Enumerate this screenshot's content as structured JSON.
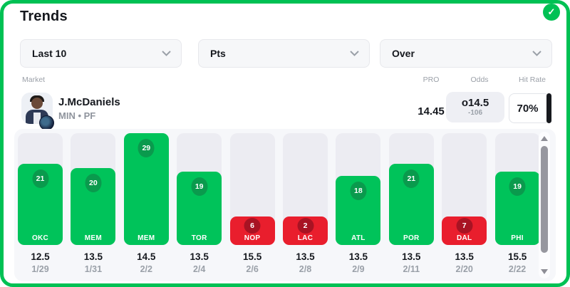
{
  "header": {
    "title": "Trends",
    "check_glyph": "✓"
  },
  "filters": [
    {
      "label": "Last 10"
    },
    {
      "label": "Pts"
    },
    {
      "label": "Over"
    }
  ],
  "columns_header": {
    "market": "Market",
    "pro": "PRO",
    "odds": "Odds",
    "hit_rate": "Hit Rate"
  },
  "player": {
    "name": "J.McDaniels",
    "team_position": "MIN • PF",
    "pro_value": "14.45",
    "odds_line": "o14.5",
    "odds_price": "-106",
    "hit_rate": "70%"
  },
  "chart_data": {
    "type": "bar",
    "teams": [
      "OKC",
      "MEM",
      "MEM",
      "TOR",
      "NOP",
      "LAC",
      "ATL",
      "POR",
      "DAL",
      "PHI"
    ],
    "values": [
      21,
      20,
      29,
      19,
      6,
      2,
      18,
      21,
      7,
      19
    ],
    "lines": [
      "12.5",
      "13.5",
      "14.5",
      "13.5",
      "15.5",
      "13.5",
      "13.5",
      "13.5",
      "13.5",
      "15.5"
    ],
    "dates": [
      "1/29",
      "1/31",
      "2/2",
      "2/4",
      "2/6",
      "2/8",
      "2/9",
      "2/11",
      "2/20",
      "2/22"
    ],
    "results": [
      "over",
      "over",
      "over",
      "over",
      "under",
      "under",
      "over",
      "over",
      "under",
      "over"
    ],
    "ylim": [
      0,
      29
    ]
  },
  "colors": {
    "green": "#00C35A",
    "green_dark": "#0A9A4D",
    "red": "#E91E2D",
    "red_dark": "#A81323",
    "track": "#ECECF2",
    "panel": "#F6F7FA",
    "chip": "#F6F7F9",
    "chip_border": "#E7E8EC",
    "pill": "#EEEFF4",
    "dark": "#15181E",
    "gray": "#9AA0A8",
    "border_green": "#00C154",
    "thumb": "#97979F"
  }
}
